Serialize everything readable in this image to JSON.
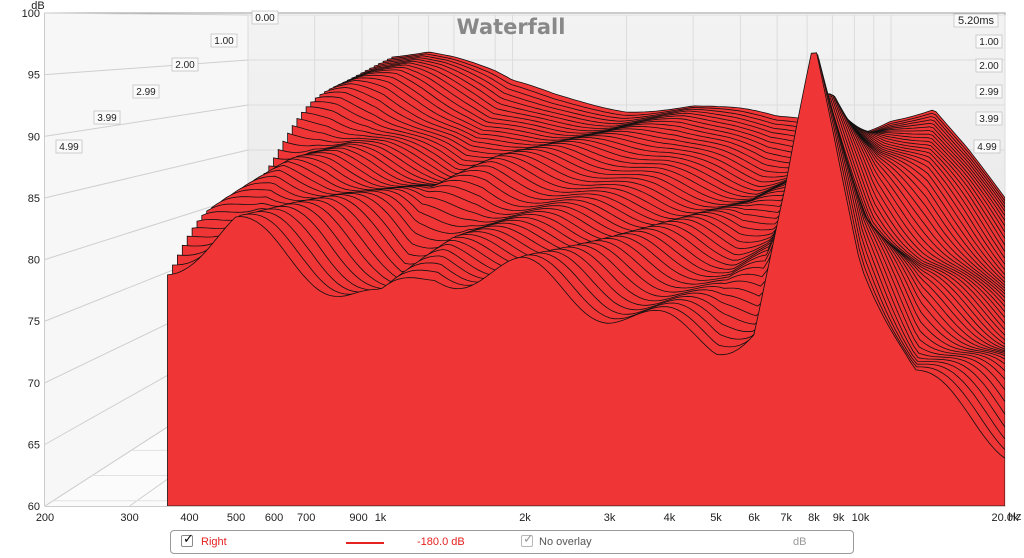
{
  "chart_data": {
    "type": "area",
    "title": "Waterfall",
    "y_unit": "dB",
    "yticks": [
      "60",
      "65",
      "70",
      "75",
      "80",
      "85",
      "90",
      "95",
      "100"
    ],
    "ylim": [
      60,
      100
    ],
    "xticks": [
      "200",
      "300",
      "400",
      "500",
      "600",
      "700",
      "900",
      "1k",
      "2k",
      "3k",
      "4k",
      "5k",
      "6k",
      "7k",
      "8k",
      "9k",
      "10k",
      "20.0k"
    ],
    "x_unit": "Hz",
    "x_tick_hz": [
      200,
      300,
      400,
      500,
      600,
      700,
      900,
      1000,
      2000,
      3000,
      4000,
      5000,
      6000,
      7000,
      8000,
      9000,
      10000,
      20000
    ],
    "xlim_hz": [
      200,
      20000
    ],
    "time_axis_unit": "ms",
    "time_ticks_left": [
      "0.00",
      "1.00",
      "2.00",
      "2.99",
      "3.99",
      "4.99"
    ],
    "time_ticks_right": [
      "5.20ms",
      "1.00",
      "2.00",
      "2.99",
      "3.99",
      "4.99"
    ],
    "time_max_ms": 5.2,
    "grid": true,
    "series": [
      {
        "name": "Right",
        "color": "#ef3535",
        "front_slice_db": {
          "hz": [
            360,
            400,
            500,
            600,
            700,
            900,
            1000,
            1300,
            2000,
            3000,
            4000,
            5000,
            6000,
            7000,
            8000,
            10000,
            13000,
            16000,
            20000
          ],
          "db": [
            79,
            80,
            82,
            81,
            80,
            78,
            77,
            79,
            78,
            76,
            75,
            74,
            75,
            85,
            96,
            80,
            70,
            68,
            66
          ]
        },
        "back_slice_db": {
          "hz": [
            480,
            600,
            700,
            900,
            1000,
            1300,
            2000,
            3000,
            4000,
            5000,
            6000,
            7000,
            8000,
            9000,
            10000,
            13000,
            16000,
            20000
          ],
          "db": [
            96,
            96,
            95,
            93,
            92,
            91,
            90,
            90,
            89,
            88,
            88,
            87,
            87,
            88,
            89,
            90,
            85,
            79
          ]
        }
      }
    ]
  },
  "legend": {
    "series_label": "Right",
    "series_value": "-180.0 dB",
    "overlay_label": "No overlay",
    "overlay_unit": "dB",
    "series_color": "#e52222",
    "check_glyph": "✓"
  }
}
